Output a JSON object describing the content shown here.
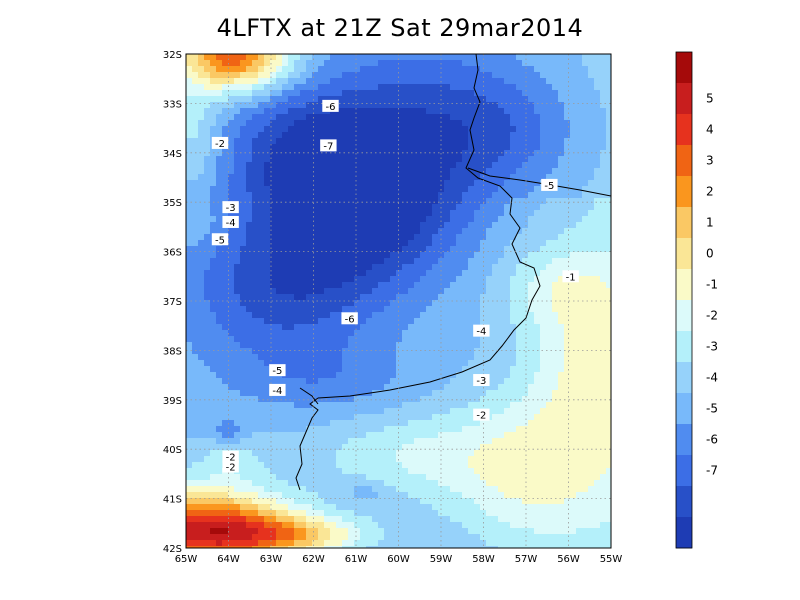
{
  "title": "4LFTX at 21Z Sat 29mar2014",
  "map": {
    "lon_labels": [
      "65W",
      "64W",
      "63W",
      "62W",
      "61W",
      "60W",
      "59W",
      "58W",
      "57W",
      "56W",
      "55W"
    ],
    "lat_labels": [
      "32S",
      "33S",
      "34S",
      "35S",
      "36S",
      "37S",
      "38S",
      "39S",
      "40S",
      "41S",
      "42S"
    ]
  },
  "contour_labels": [
    {
      "text": "-6",
      "lon": -61.6,
      "lat": -33.05
    },
    {
      "text": "-7",
      "lon": -61.65,
      "lat": -33.85
    },
    {
      "text": "-2",
      "lon": -64.2,
      "lat": -33.8
    },
    {
      "text": "-3",
      "lon": -63.95,
      "lat": -35.1
    },
    {
      "text": "-4",
      "lon": -63.95,
      "lat": -35.4
    },
    {
      "text": "-5",
      "lon": -64.2,
      "lat": -35.75
    },
    {
      "text": "-5",
      "lon": -56.45,
      "lat": -34.65
    },
    {
      "text": "-1",
      "lon": -55.95,
      "lat": -36.5
    },
    {
      "text": "-6",
      "lon": -61.15,
      "lat": -37.35
    },
    {
      "text": "-4",
      "lon": -58.05,
      "lat": -37.6
    },
    {
      "text": "-5",
      "lon": -62.85,
      "lat": -38.4
    },
    {
      "text": "-4",
      "lon": -62.85,
      "lat": -38.8
    },
    {
      "text": "-3",
      "lon": -58.05,
      "lat": -38.6
    },
    {
      "text": "-2",
      "lon": -58.05,
      "lat": -39.3
    },
    {
      "text": "-2",
      "lon": -63.95,
      "lat": -40.15
    },
    {
      "text": "-2",
      "lon": -63.95,
      "lat": -40.35
    }
  ],
  "colorbar": {
    "labels": [
      "5",
      "4",
      "3",
      "2",
      "1",
      "0",
      "-1",
      "-2",
      "-3",
      "-4",
      "-5",
      "-6",
      "-7"
    ],
    "colors": [
      "#a50a0a",
      "#c81e1e",
      "#e6321e",
      "#f06414",
      "#fa961e",
      "#fac864",
      "#fae696",
      "#fafac8",
      "#dcfafa",
      "#b4f0fa",
      "#96d2fa",
      "#78b9fa",
      "#508cf0",
      "#3c6ee6",
      "#2850c8",
      "#1e3cb4"
    ]
  },
  "chart_data": {
    "type": "heatmap",
    "title": "4LFTX at 21Z Sat 29mar2014",
    "variable": "4LFTX",
    "valid_time": "21Z Sat 29mar2014",
    "lon_range": [
      -65,
      -55
    ],
    "lat_range": [
      -42,
      -32
    ],
    "contour_interval": 1,
    "color_levels": [
      -7,
      -6,
      -5,
      -4,
      -3,
      -2,
      -1,
      0,
      1,
      2,
      3,
      4,
      5
    ],
    "field_summary": [
      {
        "region": "central Argentina (61W, 34.5S)",
        "value_range": [
          -8,
          -7
        ]
      },
      {
        "region": "northwest corner (63.5W, 32S)",
        "value_range": [
          2,
          5
        ]
      },
      {
        "region": "southwest corner (64.5W, 41.5S)",
        "value_range": [
          3,
          6
        ]
      },
      {
        "region": "southeast plain (56W, 40S)",
        "value_range": [
          -1,
          0
        ]
      }
    ]
  }
}
